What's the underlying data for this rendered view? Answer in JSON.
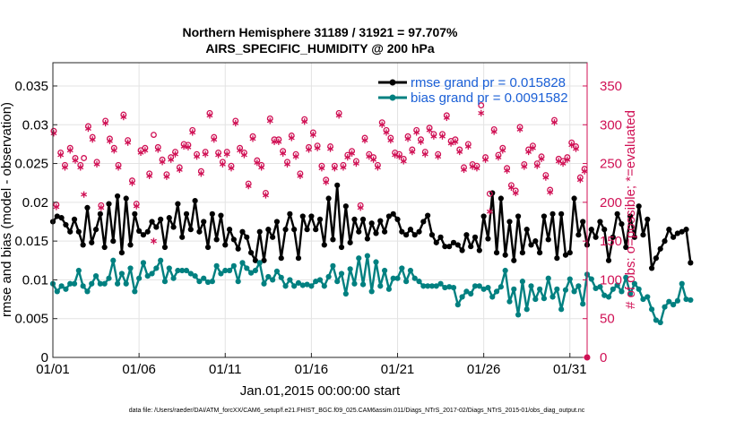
{
  "chart_data": {
    "type": "line",
    "title": "Northern Hemisphere 31189 / 31921 = 97.707%",
    "subtitle": "AIRS_SPECIFIC_HUMIDITY @ 200 hPa",
    "xlabel": "Jan.01,2015 00:00:00 start",
    "ylabel": "rmse and bias (model - observation)",
    "y2label": "# of obs: o=possible; *=evaluated",
    "footnote": "data file: /Users/raeder/DAI/ATM_forcXX/CAM6_setup/f.e21.FHIST_BGC.f09_025.CAM6assim.011/Diags_NTrS_2017-02/Diags_NTrS_2015-01/obs_diag_output.nc",
    "xlim": [
      1,
      32
    ],
    "ylim": [
      0,
      0.038
    ],
    "y2lim": [
      0,
      380
    ],
    "xticks": [
      1,
      6,
      11,
      16,
      21,
      26,
      31
    ],
    "xtick_labels": [
      "01/01",
      "01/06",
      "01/11",
      "01/16",
      "01/21",
      "01/26",
      "01/31"
    ],
    "yticks": [
      0,
      0.005,
      0.01,
      0.015,
      0.02,
      0.025,
      0.03,
      0.035
    ],
    "ytick_labels": [
      "0",
      "0.005",
      "0.01",
      "0.015",
      "0.02",
      "0.025",
      "0.03",
      "0.035"
    ],
    "y2ticks": [
      0,
      50,
      100,
      150,
      200,
      250,
      300,
      350
    ],
    "y2tick_labels": [
      "0",
      "50",
      "100",
      "150",
      "200",
      "250",
      "300",
      "350"
    ],
    "series": [
      {
        "name": "rmse grand pr = 0.015828",
        "color": "#000000",
        "x_start": 1.0,
        "x_step": 0.25,
        "values": [
          0.0175,
          0.0182,
          0.018,
          0.0171,
          0.0162,
          0.0178,
          0.0162,
          0.0145,
          0.0193,
          0.0148,
          0.0165,
          0.0185,
          0.0142,
          0.0198,
          0.015,
          0.0208,
          0.0135,
          0.0205,
          0.0145,
          0.0185,
          0.0163,
          0.0158,
          0.0162,
          0.0175,
          0.0168,
          0.0178,
          0.0142,
          0.018,
          0.0168,
          0.0198,
          0.0155,
          0.0185,
          0.0165,
          0.0202,
          0.0162,
          0.0175,
          0.0142,
          0.0185,
          0.0152,
          0.0183,
          0.0145,
          0.0165,
          0.0152,
          0.014,
          0.0162,
          0.0155,
          0.0135,
          0.0125,
          0.0162,
          0.0125,
          0.0165,
          0.0155,
          0.0175,
          0.0128,
          0.0165,
          0.0185,
          0.0165,
          0.0128,
          0.0182,
          0.0165,
          0.0182,
          0.0165,
          0.0178,
          0.0145,
          0.0205,
          0.0152,
          0.0222,
          0.0142,
          0.0195,
          0.0148,
          0.0178,
          0.0162,
          0.0178,
          0.0153,
          0.0173,
          0.016,
          0.0176,
          0.0162,
          0.0182,
          0.0185,
          0.0178,
          0.0162,
          0.0158,
          0.0165,
          0.0158,
          0.0162,
          0.0175,
          0.0183,
          0.0158,
          0.0148,
          0.0155,
          0.0143,
          0.0143,
          0.0148,
          0.0145,
          0.0138,
          0.0158,
          0.0143,
          0.0155,
          0.0138,
          0.0182,
          0.0153,
          0.0212,
          0.0135,
          0.0205,
          0.0132,
          0.0175,
          0.0125,
          0.0182,
          0.0135,
          0.0165,
          0.0145,
          0.015,
          0.0135,
          0.0182,
          0.0152,
          0.0185,
          0.0128,
          0.0185,
          0.0132,
          0.0135,
          0.0205,
          0.0158,
          0.0175,
          0.0145,
          0.0165,
          0.0155,
          0.0175,
          0.0165,
          0.0125,
          0.0155,
          0.0185,
          0.0172,
          0.0142,
          0.0182,
          0.0155,
          0.0195,
          0.0158,
          0.0178,
          0.0115,
          0.0128,
          0.014,
          0.015,
          0.0165,
          0.0155,
          0.016,
          0.0162,
          0.0165,
          0.0122
        ]
      },
      {
        "name": "bias grand pr = 0.0091582",
        "color": "#008080",
        "x_start": 1.0,
        "x_step": 0.25,
        "values": [
          0.0095,
          0.0085,
          0.0092,
          0.0088,
          0.0095,
          0.0095,
          0.0112,
          0.0092,
          0.0085,
          0.0095,
          0.0105,
          0.0095,
          0.0095,
          0.0102,
          0.0125,
          0.0095,
          0.0108,
          0.0095,
          0.0115,
          0.0085,
          0.0102,
          0.0122,
          0.0105,
          0.0108,
          0.0115,
          0.0125,
          0.0098,
          0.0115,
          0.0102,
          0.0112,
          0.0112,
          0.0112,
          0.0108,
          0.0105,
          0.0098,
          0.0102,
          0.0097,
          0.0098,
          0.0118,
          0.0108,
          0.0112,
          0.0112,
          0.0118,
          0.0098,
          0.0122,
          0.0115,
          0.0109,
          0.0112,
          0.0122,
          0.0095,
          0.0104,
          0.01,
          0.0111,
          0.0103,
          0.0092,
          0.01,
          0.0092,
          0.0096,
          0.0093,
          0.0094,
          0.0092,
          0.0098,
          0.01,
          0.0092,
          0.0104,
          0.0118,
          0.0098,
          0.0108,
          0.0082,
          0.0114,
          0.0095,
          0.0128,
          0.0094,
          0.0131,
          0.0085,
          0.0123,
          0.0092,
          0.0112,
          0.0088,
          0.0102,
          0.0102,
          0.0115,
          0.0098,
          0.0112,
          0.0102,
          0.0098,
          0.0092,
          0.0092,
          0.0092,
          0.0092,
          0.0095,
          0.009,
          0.0091,
          0.009,
          0.0068,
          0.0078,
          0.0085,
          0.0082,
          0.0092,
          0.0092,
          0.0088,
          0.009,
          0.0078,
          0.0085,
          0.0091,
          0.0112,
          0.0072,
          0.0088,
          0.0055,
          0.0098,
          0.0062,
          0.0092,
          0.0075,
          0.0088,
          0.0076,
          0.0102,
          0.0078,
          0.0088,
          0.0062,
          0.0087,
          0.0101,
          0.0085,
          0.0092,
          0.0069,
          0.0107,
          0.0101,
          0.0089,
          0.0091,
          0.008,
          0.0078,
          0.0088,
          0.0093,
          0.0085,
          0.0103,
          0.0082,
          0.0095,
          0.0088,
          0.0075,
          0.0078,
          0.0062,
          0.0048,
          0.0045,
          0.0065,
          0.0072,
          0.0068,
          0.0073,
          0.0095,
          0.0075,
          0.0074
        ]
      }
    ],
    "obs_possible": {
      "marker": "o",
      "color": "#d01155",
      "points": [
        [
          1.05,
          292
        ],
        [
          1.2,
          197
        ],
        [
          1.45,
          264
        ],
        [
          1.7,
          248
        ],
        [
          2.0,
          270
        ],
        [
          2.3,
          257
        ],
        [
          2.6,
          248
        ],
        [
          2.8,
          257
        ],
        [
          3.05,
          298
        ],
        [
          3.3,
          284
        ],
        [
          3.55,
          252
        ],
        [
          3.8,
          196
        ],
        [
          4.05,
          305
        ],
        [
          4.3,
          282
        ],
        [
          4.55,
          270
        ],
        [
          4.8,
          248
        ],
        [
          5.1,
          313
        ],
        [
          5.35,
          280
        ],
        [
          5.6,
          228
        ],
        [
          5.85,
          198
        ],
        [
          6.1,
          267
        ],
        [
          6.35,
          270
        ],
        [
          6.6,
          237
        ],
        [
          6.85,
          287
        ],
        [
          7.1,
          271
        ],
        [
          7.35,
          255
        ],
        [
          7.6,
          236
        ],
        [
          7.85,
          258
        ],
        [
          8.1,
          265
        ],
        [
          8.35,
          245
        ],
        [
          8.6,
          275
        ],
        [
          8.85,
          274
        ],
        [
          9.1,
          293
        ],
        [
          9.35,
          262
        ],
        [
          9.6,
          240
        ],
        [
          9.85,
          265
        ],
        [
          10.1,
          315
        ],
        [
          10.35,
          284
        ],
        [
          10.6,
          264
        ],
        [
          10.85,
          252
        ],
        [
          11.1,
          265
        ],
        [
          11.35,
          247
        ],
        [
          11.6,
          305
        ],
        [
          11.85,
          270
        ],
        [
          12.1,
          264
        ],
        [
          12.35,
          224
        ],
        [
          12.6,
          285
        ],
        [
          12.85,
          254
        ],
        [
          13.1,
          248
        ],
        [
          13.35,
          212
        ],
        [
          13.6,
          308
        ],
        [
          13.85,
          281
        ],
        [
          14.1,
          281
        ],
        [
          14.35,
          266
        ],
        [
          14.6,
          252
        ],
        [
          14.85,
          286
        ],
        [
          15.1,
          262
        ],
        [
          15.35,
          237
        ],
        [
          15.6,
          307
        ],
        [
          15.85,
          271
        ],
        [
          16.1,
          290
        ],
        [
          16.35,
          273
        ],
        [
          16.6,
          247
        ],
        [
          16.85,
          229
        ],
        [
          17.1,
          272
        ],
        [
          17.35,
          247
        ],
        [
          17.6,
          315
        ],
        [
          17.85,
          248
        ],
        [
          18.1,
          261
        ],
        [
          18.35,
          266
        ],
        [
          18.6,
          253
        ],
        [
          18.85,
          196
        ],
        [
          19.1,
          283
        ],
        [
          19.35,
          262
        ],
        [
          19.6,
          258
        ],
        [
          19.85,
          248
        ],
        [
          20.1,
          303
        ],
        [
          20.35,
          293
        ],
        [
          20.6,
          283
        ],
        [
          20.85,
          264
        ],
        [
          21.1,
          262
        ],
        [
          21.35,
          256
        ],
        [
          21.6,
          285
        ],
        [
          21.85,
          268
        ],
        [
          22.1,
          293
        ],
        [
          22.35,
          281
        ],
        [
          22.6,
          265
        ],
        [
          22.85,
          296
        ],
        [
          23.1,
          288
        ],
        [
          23.35,
          262
        ],
        [
          23.6,
          288
        ],
        [
          23.85,
          312
        ],
        [
          24.1,
          279
        ],
        [
          24.35,
          281
        ],
        [
          24.6,
          268
        ],
        [
          24.85,
          245
        ],
        [
          25.1,
          275
        ],
        [
          25.35,
          249
        ],
        [
          25.6,
          247
        ],
        [
          25.85,
          325
        ],
        [
          26.1,
          258
        ],
        [
          26.35,
          211
        ],
        [
          26.6,
          294
        ],
        [
          26.85,
          261
        ],
        [
          27.1,
          270
        ],
        [
          27.35,
          244
        ],
        [
          27.6,
          222
        ],
        [
          27.85,
          215
        ],
        [
          28.1,
          297
        ],
        [
          28.35,
          249
        ],
        [
          28.6,
          268
        ],
        [
          28.85,
          273
        ],
        [
          29.1,
          250
        ],
        [
          29.35,
          259
        ],
        [
          29.6,
          235
        ],
        [
          29.85,
          216
        ],
        [
          30.1,
          306
        ],
        [
          30.35,
          256
        ],
        [
          30.6,
          253
        ],
        [
          30.85,
          258
        ],
        [
          31.1,
          277
        ],
        [
          31.35,
          272
        ],
        [
          31.6,
          232
        ],
        [
          31.85,
          243
        ]
      ]
    },
    "obs_evaluated": {
      "marker": "*",
      "color": "#d01155",
      "points": [
        [
          1.05,
          289
        ],
        [
          1.2,
          194
        ],
        [
          1.45,
          261
        ],
        [
          1.7,
          245
        ],
        [
          2.0,
          267
        ],
        [
          2.3,
          254
        ],
        [
          2.6,
          245
        ],
        [
          2.8,
          210
        ],
        [
          3.05,
          295
        ],
        [
          3.3,
          281
        ],
        [
          3.55,
          249
        ],
        [
          3.8,
          193
        ],
        [
          4.05,
          302
        ],
        [
          4.3,
          279
        ],
        [
          4.55,
          267
        ],
        [
          4.8,
          245
        ],
        [
          5.1,
          310
        ],
        [
          5.35,
          277
        ],
        [
          5.6,
          225
        ],
        [
          5.85,
          195
        ],
        [
          6.1,
          264
        ],
        [
          6.35,
          267
        ],
        [
          6.6,
          234
        ],
        [
          6.85,
          150
        ],
        [
          7.1,
          268
        ],
        [
          7.35,
          252
        ],
        [
          7.6,
          233
        ],
        [
          7.85,
          255
        ],
        [
          8.1,
          262
        ],
        [
          8.35,
          242
        ],
        [
          8.6,
          272
        ],
        [
          8.85,
          271
        ],
        [
          9.1,
          290
        ],
        [
          9.35,
          259
        ],
        [
          9.6,
          237
        ],
        [
          9.85,
          262
        ],
        [
          10.1,
          312
        ],
        [
          10.35,
          281
        ],
        [
          10.6,
          261
        ],
        [
          10.85,
          249
        ],
        [
          11.1,
          262
        ],
        [
          11.35,
          244
        ],
        [
          11.6,
          302
        ],
        [
          11.85,
          267
        ],
        [
          12.1,
          261
        ],
        [
          12.35,
          221
        ],
        [
          12.6,
          282
        ],
        [
          12.85,
          251
        ],
        [
          13.1,
          245
        ],
        [
          13.35,
          209
        ],
        [
          13.6,
          305
        ],
        [
          13.85,
          278
        ],
        [
          14.1,
          278
        ],
        [
          14.35,
          263
        ],
        [
          14.6,
          249
        ],
        [
          14.85,
          283
        ],
        [
          15.1,
          259
        ],
        [
          15.35,
          234
        ],
        [
          15.6,
          304
        ],
        [
          15.85,
          268
        ],
        [
          16.1,
          287
        ],
        [
          16.35,
          270
        ],
        [
          16.6,
          244
        ],
        [
          16.85,
          226
        ],
        [
          17.1,
          269
        ],
        [
          17.35,
          244
        ],
        [
          17.6,
          312
        ],
        [
          17.85,
          245
        ],
        [
          18.1,
          258
        ],
        [
          18.35,
          263
        ],
        [
          18.6,
          250
        ],
        [
          18.85,
          193
        ],
        [
          19.1,
          280
        ],
        [
          19.35,
          259
        ],
        [
          19.6,
          255
        ],
        [
          19.85,
          245
        ],
        [
          20.1,
          300
        ],
        [
          20.35,
          290
        ],
        [
          20.6,
          280
        ],
        [
          20.85,
          261
        ],
        [
          21.1,
          259
        ],
        [
          21.35,
          253
        ],
        [
          21.6,
          282
        ],
        [
          21.85,
          265
        ],
        [
          22.1,
          290
        ],
        [
          22.35,
          278
        ],
        [
          22.6,
          262
        ],
        [
          22.85,
          293
        ],
        [
          23.1,
          285
        ],
        [
          23.35,
          259
        ],
        [
          23.6,
          285
        ],
        [
          23.85,
          309
        ],
        [
          24.1,
          276
        ],
        [
          24.35,
          278
        ],
        [
          24.6,
          265
        ],
        [
          24.85,
          242
        ],
        [
          25.1,
          272
        ],
        [
          25.35,
          246
        ],
        [
          25.6,
          244
        ],
        [
          25.85,
          315
        ],
        [
          26.1,
          255
        ],
        [
          26.35,
          188
        ],
        [
          26.6,
          291
        ],
        [
          26.85,
          258
        ],
        [
          27.1,
          267
        ],
        [
          27.35,
          241
        ],
        [
          27.6,
          219
        ],
        [
          27.85,
          212
        ],
        [
          28.1,
          294
        ],
        [
          28.35,
          246
        ],
        [
          28.6,
          265
        ],
        [
          28.85,
          270
        ],
        [
          29.1,
          247
        ],
        [
          29.35,
          256
        ],
        [
          29.6,
          232
        ],
        [
          29.85,
          213
        ],
        [
          30.1,
          303
        ],
        [
          30.35,
          253
        ],
        [
          30.6,
          250
        ],
        [
          30.85,
          255
        ],
        [
          31.1,
          274
        ],
        [
          31.35,
          269
        ],
        [
          31.6,
          229
        ],
        [
          31.85,
          240
        ]
      ]
    },
    "obs_zero_marker": {
      "x": 32,
      "y": 0,
      "color": "#d01155"
    }
  }
}
